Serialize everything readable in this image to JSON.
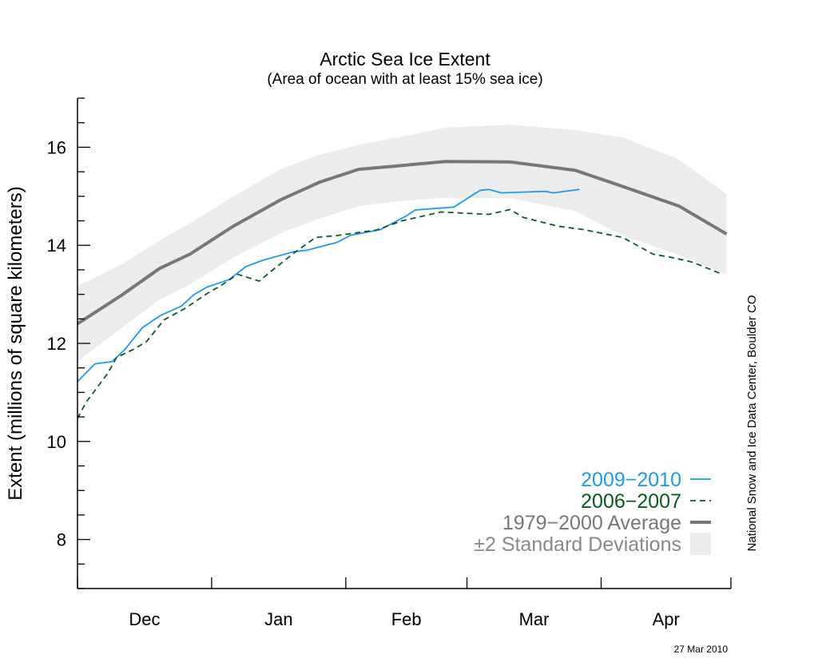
{
  "chart_data": {
    "type": "line",
    "title": "Arctic Sea Ice Extent",
    "subtitle": "(Area of ocean with at least 15% sea ice)",
    "xlabel": "",
    "ylabel": "Extent (millions of square kilometers)",
    "x_unit": "days since Dec 1",
    "xlim": [
      0,
      151
    ],
    "ylim": [
      7,
      17
    ],
    "y_ticks": [
      8,
      10,
      12,
      14,
      16
    ],
    "month_ticks": [
      0,
      31,
      62,
      90,
      121,
      151
    ],
    "month_labels": [
      {
        "label": "Dec",
        "center": 15.5
      },
      {
        "label": "Jan",
        "center": 46.5
      },
      {
        "label": "Feb",
        "center": 76
      },
      {
        "label": "Mar",
        "center": 105.5
      },
      {
        "label": "Apr",
        "center": 136
      }
    ],
    "grid": false,
    "legend_position": "bottom-right",
    "band": {
      "name": "±2 Standard Deviations",
      "color": "#ececec",
      "x": [
        0,
        10,
        19,
        26,
        36,
        47,
        56,
        65,
        74,
        85,
        100,
        115,
        126,
        139,
        150
      ],
      "upper": [
        13.17,
        13.6,
        14.1,
        14.45,
        15.0,
        15.55,
        15.85,
        16.05,
        16.2,
        16.4,
        16.46,
        16.35,
        16.2,
        15.75,
        15.04
      ],
      "lower": [
        11.63,
        12.3,
        12.9,
        13.2,
        13.75,
        14.25,
        14.55,
        14.8,
        14.9,
        14.97,
        14.96,
        14.7,
        14.2,
        13.8,
        13.41
      ]
    },
    "series": [
      {
        "name": "1979−2000 Average",
        "color": "#777777",
        "style": "thick",
        "x": [
          0,
          10,
          19,
          26,
          36,
          47,
          56,
          65,
          74,
          85,
          100,
          115,
          126,
          139,
          150
        ],
        "y": [
          12.4,
          12.97,
          13.53,
          13.82,
          14.39,
          14.93,
          15.29,
          15.55,
          15.62,
          15.71,
          15.7,
          15.53,
          15.2,
          14.8,
          14.23
        ]
      },
      {
        "name": "2009−2010",
        "color": "#1a9af0",
        "style": "solid",
        "x": [
          0,
          4,
          8,
          11,
          15,
          19,
          24,
          27,
          30,
          35,
          39,
          43,
          50,
          53,
          60,
          63,
          70,
          76,
          78,
          87,
          93,
          95,
          98,
          108,
          110,
          116
        ],
        "y": [
          11.22,
          11.58,
          11.63,
          11.88,
          12.32,
          12.56,
          12.76,
          13.0,
          13.15,
          13.3,
          13.57,
          13.7,
          13.87,
          13.9,
          14.06,
          14.2,
          14.32,
          14.6,
          14.72,
          14.78,
          15.12,
          15.14,
          15.07,
          15.1,
          15.07,
          15.14
        ]
      },
      {
        "name": "2006−2007",
        "color": "#0a5a1e",
        "style": "dashed",
        "x": [
          0,
          2,
          7,
          9,
          13,
          16,
          20,
          25,
          30,
          33,
          37,
          42,
          45,
          50,
          55,
          60,
          69,
          75,
          84,
          95,
          100,
          103,
          111,
          117,
          126,
          133,
          138,
          142,
          149
        ],
        "y": [
          10.47,
          10.8,
          11.39,
          11.71,
          11.88,
          12.04,
          12.48,
          12.72,
          13.02,
          13.17,
          13.41,
          13.27,
          13.49,
          13.84,
          14.16,
          14.2,
          14.31,
          14.5,
          14.68,
          14.63,
          14.73,
          14.57,
          14.39,
          14.32,
          14.16,
          13.82,
          13.74,
          13.66,
          13.41
        ]
      }
    ],
    "legend": [
      {
        "label": "2009−2010",
        "color": "#1a9af0"
      },
      {
        "label": "2006−2007",
        "color": "#0a5a1e"
      },
      {
        "label": "1979−2000 Average",
        "color": "#777777"
      },
      {
        "label": "±2 Standard Deviations",
        "color": "#888888"
      }
    ],
    "credit": "National Snow and Ice Data Center, Boulder CO",
    "date": "27 Mar 2010"
  }
}
